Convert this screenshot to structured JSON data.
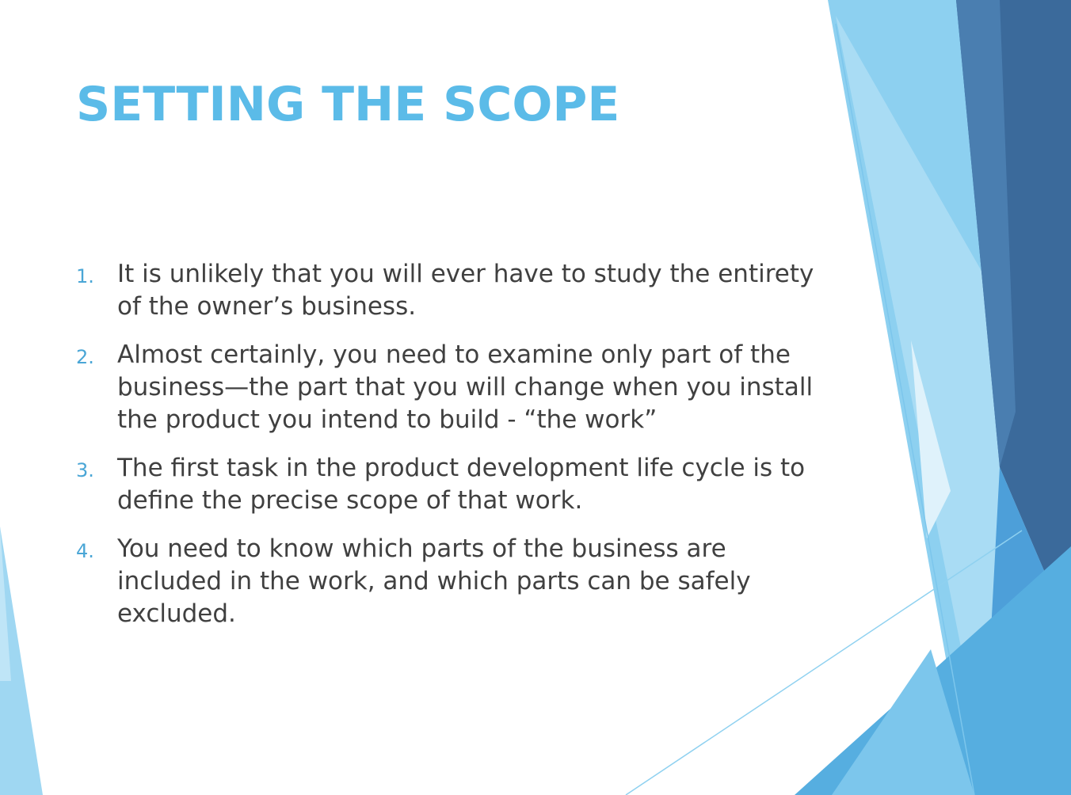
{
  "slide": {
    "title": "SETTING THE SCOPE",
    "items": [
      {
        "number": "1.",
        "text": "It is unlikely that you will ever have to study the entirety of the owner’s business."
      },
      {
        "number": "2.",
        "text": "Almost certainly, you need to examine only part of the business—the part that you will change when you install the product you intend to build - “the work”"
      },
      {
        "number": "3.",
        "text": "The first task in the product development life cycle is to define the precise scope of that work."
      },
      {
        "number": "4.",
        "text": "You need to know which parts of the business are included in the work, and which parts can be safely excluded."
      }
    ]
  },
  "colors": {
    "title": "#5bbbe8",
    "body_text": "#404040",
    "number": "#4aa6d6",
    "dark_blue": "#3b6a9b",
    "mid_blue": "#4d9fd9",
    "light_blue": "#8dd0f0",
    "pale_blue": "#c6e8f7"
  },
  "decorations": {
    "right_panel": "decorative-blue-triangles",
    "left_edge": "decorative-blue-sliver"
  }
}
